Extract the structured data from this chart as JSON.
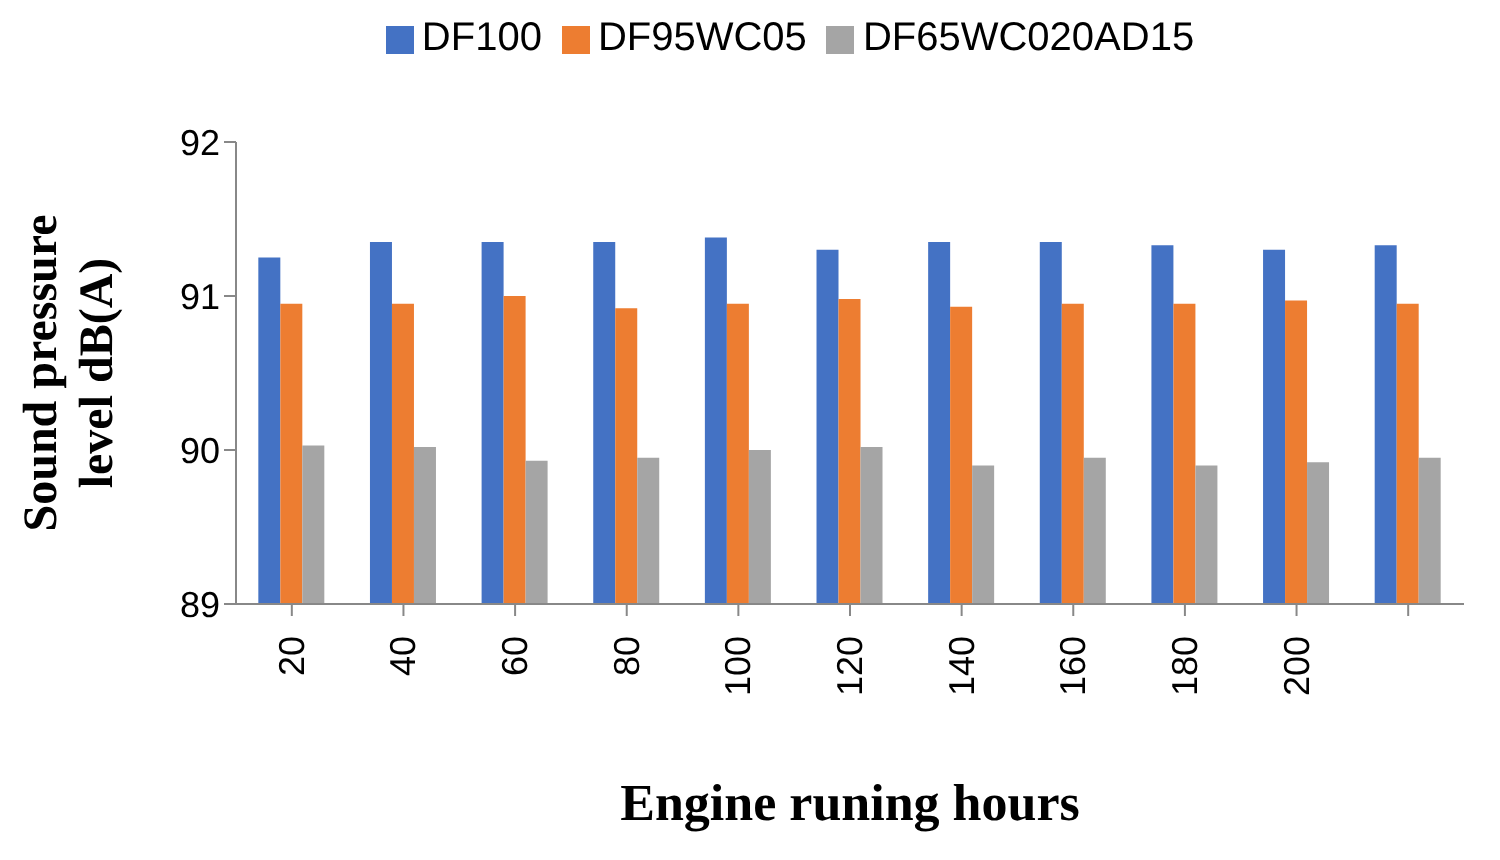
{
  "chart_data": {
    "type": "bar",
    "xlabel": "Engine runing hours",
    "ylabel": "Sound pressure level dB(A)",
    "categories": [
      "20",
      "40",
      "60",
      "80",
      "100",
      "120",
      "140",
      "160",
      "180",
      "200",
      null
    ],
    "series": [
      {
        "name": "DF100",
        "color": "#4472c4",
        "values": [
          91.25,
          91.35,
          91.35,
          91.35,
          91.38,
          91.3,
          91.35,
          91.35,
          91.33,
          91.3,
          91.33
        ]
      },
      {
        "name": "DF95WC05",
        "color": "#ed7d31",
        "values": [
          90.95,
          90.95,
          91.0,
          90.92,
          90.95,
          90.98,
          90.93,
          90.95,
          90.95,
          90.97,
          90.95
        ]
      },
      {
        "name": "DF65WC020AD15",
        "color": "#a5a5a5",
        "values": [
          90.03,
          90.02,
          89.93,
          89.95,
          90.0,
          90.02,
          89.9,
          89.95,
          89.9,
          89.92,
          89.95
        ]
      }
    ],
    "ylim": [
      89,
      92
    ],
    "yticks": [
      89,
      90,
      91,
      92
    ],
    "grid": false,
    "legend": "top"
  }
}
